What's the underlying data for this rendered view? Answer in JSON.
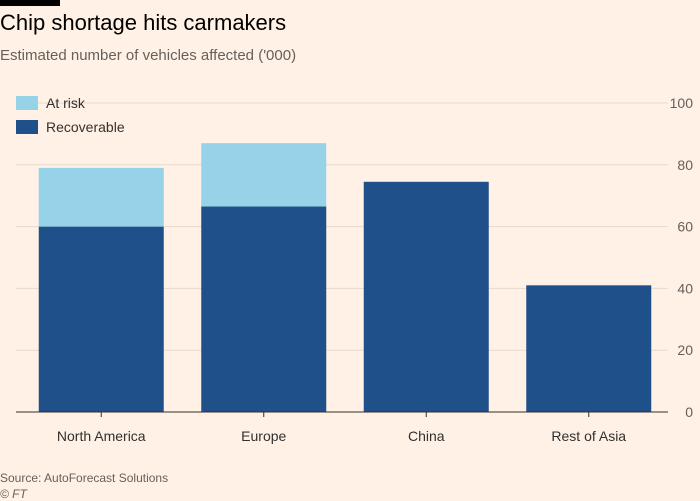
{
  "header": {
    "title": "Chip shortage hits carmakers",
    "subtitle": "Estimated number of vehicles affected ('000)"
  },
  "footer": {
    "source": "Source: AutoForecast Solutions",
    "copyright": "© FT"
  },
  "colors": {
    "background": "#FFF1E5",
    "at_risk": "#96D3E8",
    "recoverable": "#1F5089",
    "gridline": "#E6D9CE",
    "axis": "#33302E",
    "tick_text": "#66605C"
  },
  "chart_data": {
    "type": "bar",
    "stacked": true,
    "categories": [
      "North America",
      "Europe",
      "China",
      "Rest of Asia"
    ],
    "series": [
      {
        "name": "Recoverable",
        "values": [
          60,
          66.5,
          74.5,
          41
        ],
        "color": "#1F5089"
      },
      {
        "name": "At risk",
        "values": [
          19,
          20.5,
          0,
          0
        ],
        "color": "#96D3E8"
      }
    ],
    "ylim": [
      0,
      100
    ],
    "yticks": [
      0,
      20,
      40,
      60,
      80,
      100
    ],
    "y_axis_side": "right",
    "grid": true,
    "legend": {
      "placement": "top-left",
      "entries": [
        {
          "label": "At risk",
          "color": "#96D3E8"
        },
        {
          "label": "Recoverable",
          "color": "#1F5089"
        }
      ]
    }
  }
}
